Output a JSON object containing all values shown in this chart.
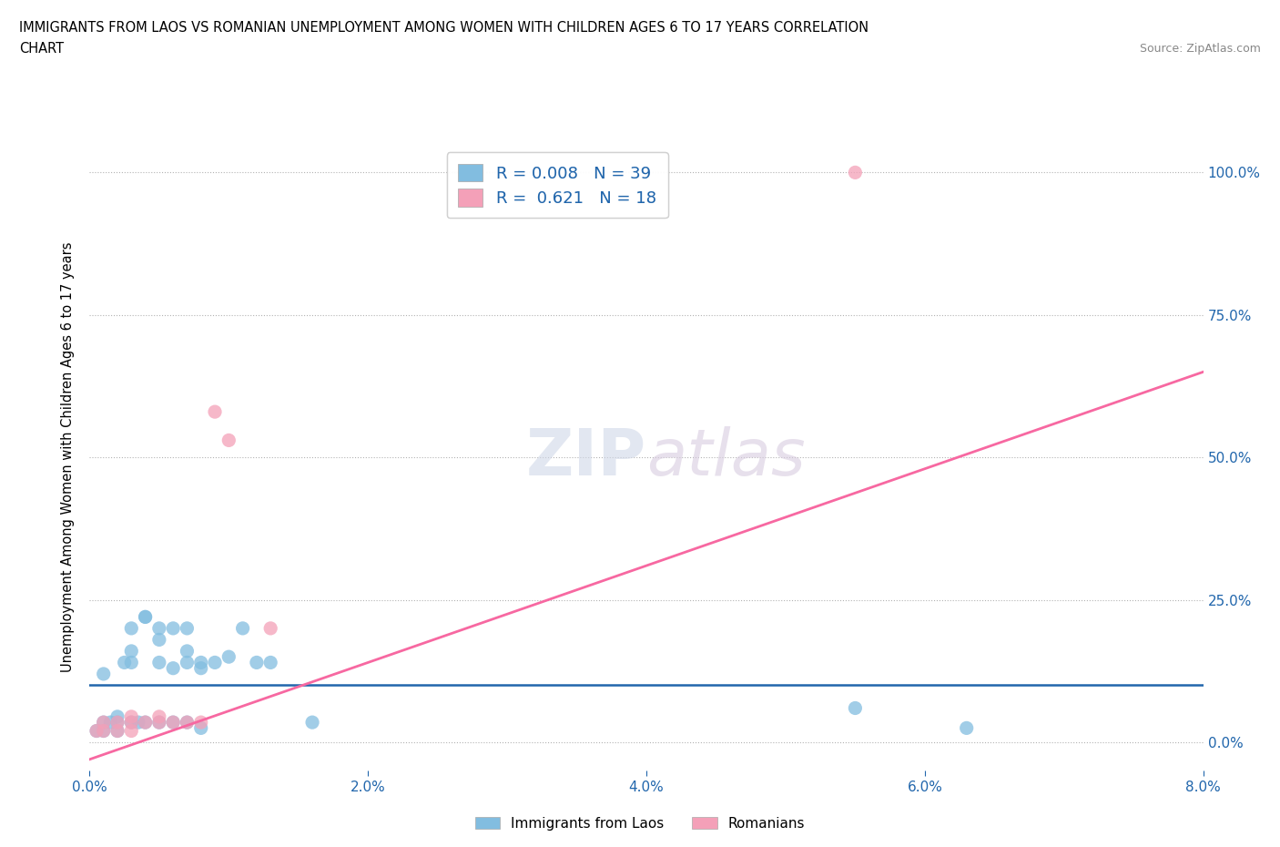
{
  "title_line1": "IMMIGRANTS FROM LAOS VS ROMANIAN UNEMPLOYMENT AMONG WOMEN WITH CHILDREN AGES 6 TO 17 YEARS CORRELATION",
  "title_line2": "CHART",
  "source": "Source: ZipAtlas.com",
  "ylabel": "Unemployment Among Women with Children Ages 6 to 17 years",
  "xlim": [
    0.0,
    0.08
  ],
  "ylim": [
    -0.05,
    1.05
  ],
  "xtick_vals": [
    0.0,
    0.02,
    0.04,
    0.06,
    0.08
  ],
  "xtick_labels": [
    "0.0%",
    "2.0%",
    "4.0%",
    "6.0%",
    "8.0%"
  ],
  "ytick_vals": [
    0.0,
    0.25,
    0.5,
    0.75,
    1.0
  ],
  "ytick_right_labels": [
    "0.0%",
    "25.0%",
    "50.0%",
    "75.0%",
    "100.0%"
  ],
  "blue_color": "#82bde0",
  "pink_color": "#f4a0b8",
  "blue_line_color": "#2166ac",
  "pink_line_color": "#f768a1",
  "legend_label1": "R = 0.008   N = 39",
  "legend_label2": "R =  0.621   N = 18",
  "watermark_zi": "ZIP",
  "watermark_atlas": "atlas",
  "blue_scatter_x": [
    0.0005,
    0.001,
    0.001,
    0.001,
    0.0015,
    0.002,
    0.002,
    0.002,
    0.0025,
    0.003,
    0.003,
    0.003,
    0.003,
    0.0035,
    0.004,
    0.004,
    0.004,
    0.005,
    0.005,
    0.005,
    0.005,
    0.006,
    0.006,
    0.006,
    0.007,
    0.007,
    0.007,
    0.007,
    0.008,
    0.008,
    0.008,
    0.009,
    0.01,
    0.011,
    0.012,
    0.013,
    0.016,
    0.055,
    0.063
  ],
  "blue_scatter_y": [
    0.02,
    0.02,
    0.035,
    0.12,
    0.035,
    0.02,
    0.035,
    0.045,
    0.14,
    0.035,
    0.14,
    0.16,
    0.2,
    0.035,
    0.22,
    0.22,
    0.035,
    0.2,
    0.14,
    0.18,
    0.035,
    0.2,
    0.13,
    0.035,
    0.2,
    0.16,
    0.14,
    0.035,
    0.13,
    0.14,
    0.025,
    0.14,
    0.15,
    0.2,
    0.14,
    0.14,
    0.035,
    0.06,
    0.025
  ],
  "pink_scatter_x": [
    0.0005,
    0.001,
    0.001,
    0.002,
    0.002,
    0.003,
    0.003,
    0.003,
    0.004,
    0.005,
    0.005,
    0.006,
    0.007,
    0.008,
    0.009,
    0.01,
    0.013,
    0.055
  ],
  "pink_scatter_y": [
    0.02,
    0.02,
    0.035,
    0.02,
    0.035,
    0.02,
    0.035,
    0.045,
    0.035,
    0.035,
    0.045,
    0.035,
    0.035,
    0.035,
    0.58,
    0.53,
    0.2,
    1.0
  ],
  "blue_line_x0": 0.0,
  "blue_line_x1": 0.08,
  "blue_line_y0": 0.1,
  "blue_line_y1": 0.1,
  "pink_line_x0": 0.0,
  "pink_line_x1": 0.08,
  "pink_line_y0": -0.03,
  "pink_line_y1": 0.65
}
